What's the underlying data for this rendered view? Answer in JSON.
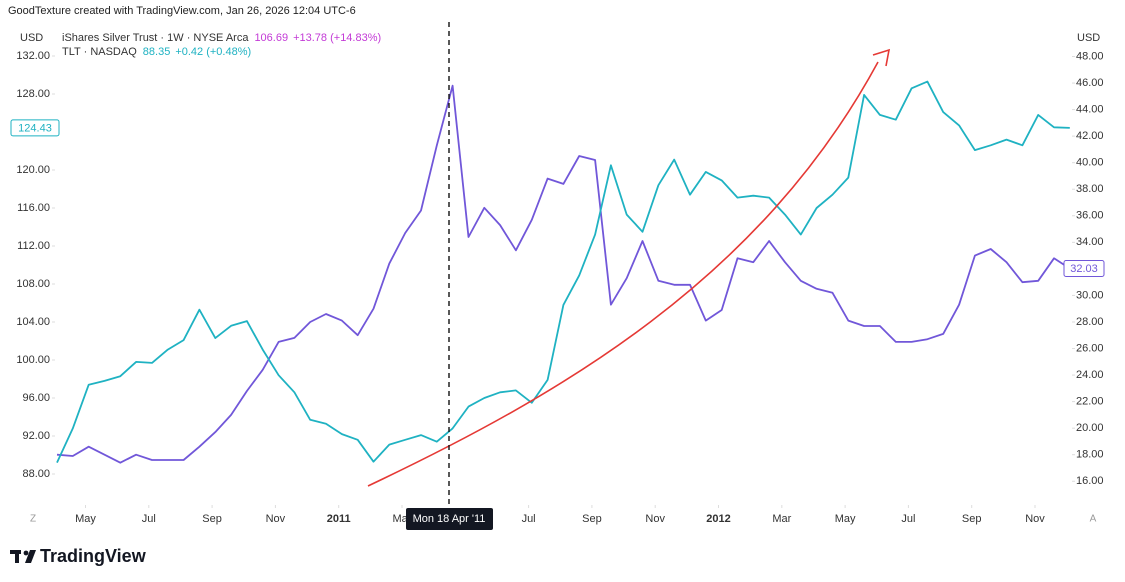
{
  "header": "GoodTexture created with TradingView.com, Jan 26, 2026 12:04 UTC-6",
  "footer_brand": "TradingView",
  "x_axis_buttons": [
    "Z",
    "A"
  ],
  "chart_data": {
    "type": "line",
    "y_unit": "USD",
    "y2_unit": "USD",
    "crosshair_label": "Mon 18 Apr '11",
    "x": [
      3.1,
      3.6,
      4.1,
      4.6,
      5.1,
      5.6,
      6.1,
      6.6,
      7.1,
      7.6,
      8.1,
      8.6,
      9.1,
      9.6,
      10.1,
      10.6,
      11.1,
      11.6,
      12.1,
      12.6,
      13.1,
      13.6,
      14.1,
      14.6,
      15.1,
      15.6,
      16.1,
      16.6,
      17.1,
      17.6,
      18.1,
      18.6,
      19.1,
      19.6,
      20.1,
      20.6,
      21.1,
      21.6,
      22.1,
      22.6,
      23.1,
      23.6,
      24.1,
      24.6,
      25.1,
      25.6,
      26.1,
      26.6,
      27.1,
      27.6,
      28.1,
      28.6,
      29.1,
      29.6,
      30.1,
      30.6,
      31.1,
      31.6,
      32.1,
      32.6,
      33.1,
      33.6,
      34.1,
      34.6,
      35.1
    ],
    "xlim": [
      3.1,
      35.2
    ],
    "xticks": [
      {
        "value": 4,
        "label": "May"
      },
      {
        "value": 6,
        "label": "Jul"
      },
      {
        "value": 8,
        "label": "Sep"
      },
      {
        "value": 10,
        "label": "Nov"
      },
      {
        "value": 12,
        "label": "2011"
      },
      {
        "value": 14,
        "label": "Mar"
      },
      {
        "value": 18,
        "label": "Jul"
      },
      {
        "value": 20,
        "label": "Sep"
      },
      {
        "value": 22,
        "label": "Nov"
      },
      {
        "value": 24,
        "label": "2012"
      },
      {
        "value": 26,
        "label": "Mar"
      },
      {
        "value": 28,
        "label": "May"
      },
      {
        "value": 30,
        "label": "Jul"
      },
      {
        "value": 32,
        "label": "Sep"
      },
      {
        "value": 34,
        "label": "Nov"
      }
    ],
    "ylim": [
      85,
      136
    ],
    "yticks": [
      {
        "value": 88,
        "label": "88.00"
      },
      {
        "value": 92,
        "label": "92.00"
      },
      {
        "value": 96,
        "label": "96.00"
      },
      {
        "value": 100,
        "label": "100.00"
      },
      {
        "value": 104,
        "label": "104.00"
      },
      {
        "value": 108,
        "label": "108.00"
      },
      {
        "value": 112,
        "label": "112.00"
      },
      {
        "value": 116,
        "label": "116.00"
      },
      {
        "value": 120,
        "label": "120.00"
      },
      {
        "value": 128,
        "label": "128.00"
      },
      {
        "value": 132,
        "label": "132.00"
      }
    ],
    "y2lim": [
      14.4,
      50.9
    ],
    "y2ticks": [
      {
        "value": 16,
        "label": "16.00"
      },
      {
        "value": 18,
        "label": "18.00"
      },
      {
        "value": 20,
        "label": "20.00"
      },
      {
        "value": 22,
        "label": "22.00"
      },
      {
        "value": 24,
        "label": "24.00"
      },
      {
        "value": 26,
        "label": "26.00"
      },
      {
        "value": 28,
        "label": "28.00"
      },
      {
        "value": 30,
        "label": "30.00"
      },
      {
        "value": 34,
        "label": "34.00"
      },
      {
        "value": 36,
        "label": "36.00"
      },
      {
        "value": 38,
        "label": "38.00"
      },
      {
        "value": 40,
        "label": "40.00"
      },
      {
        "value": 42,
        "label": "42.00"
      },
      {
        "value": 44,
        "label": "44.00"
      },
      {
        "value": 46,
        "label": "46.00"
      },
      {
        "value": 48,
        "label": "48.00"
      }
    ],
    "series": [
      {
        "name": "iShares Silver Trust · 1W · NYSE Arca",
        "quote": "106.69",
        "change": "+13.78 (+14.83%)",
        "color": "#7157d9",
        "legend_color": "#c33ad6",
        "axis": "y2",
        "values": [
          18.0,
          17.9,
          18.6,
          18.0,
          17.4,
          18.0,
          17.6,
          17.6,
          17.6,
          18.6,
          19.7,
          21.0,
          22.8,
          24.4,
          26.5,
          26.8,
          28.0,
          28.6,
          28.1,
          27.0,
          29.0,
          32.4,
          34.7,
          36.4,
          41.3,
          45.8,
          34.4,
          36.6,
          35.3,
          33.4,
          35.7,
          38.8,
          38.4,
          40.5,
          40.2,
          29.3,
          31.3,
          34.1,
          31.1,
          30.8,
          30.8,
          28.1,
          28.9,
          32.8,
          32.5,
          34.1,
          32.5,
          31.1,
          30.5,
          30.2,
          28.1,
          27.7,
          27.7,
          26.5,
          26.5,
          26.7,
          27.1,
          29.3,
          33.0,
          33.5,
          32.5,
          31.0,
          31.1,
          32.8,
          32.03
        ]
      },
      {
        "name": "TLT · NASDAQ",
        "quote": "88.35",
        "change": "+0.42 (+0.48%)",
        "color": "#1fb2c2",
        "legend_color": "#1fb2c2",
        "values": [
          89.2,
          92.8,
          97.4,
          97.8,
          98.3,
          99.8,
          99.7,
          101.1,
          102.1,
          105.3,
          102.3,
          103.6,
          104.1,
          101.1,
          98.4,
          96.6,
          93.7,
          93.3,
          92.2,
          91.6,
          89.3,
          91.1,
          91.6,
          92.1,
          91.4,
          92.8,
          95.1,
          96.0,
          96.6,
          96.8,
          95.5,
          97.9,
          105.8,
          108.9,
          113.2,
          120.5,
          115.3,
          113.5,
          118.4,
          121.1,
          117.4,
          119.8,
          118.9,
          117.1,
          117.3,
          117.1,
          115.3,
          113.2,
          116.0,
          117.4,
          119.2,
          127.9,
          125.8,
          125.3,
          128.6,
          129.3,
          126.1,
          124.7,
          122.1,
          122.6,
          123.2,
          122.6,
          125.8,
          124.5,
          124.43
        ]
      }
    ]
  }
}
